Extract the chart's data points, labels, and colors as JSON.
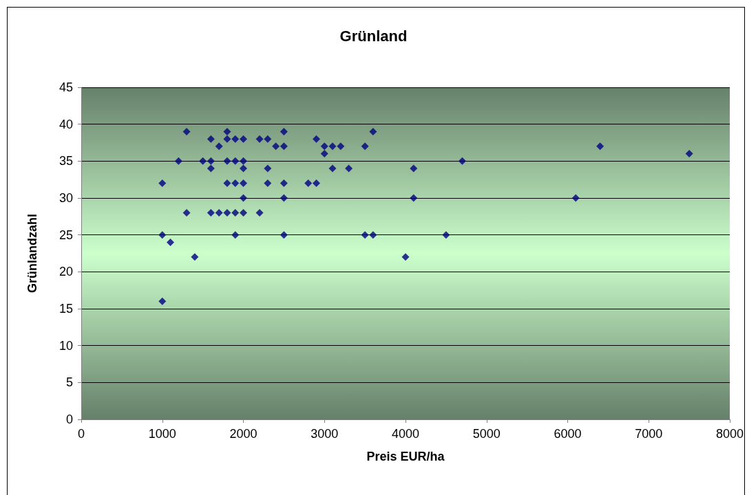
{
  "chart_data": {
    "type": "scatter",
    "title": "Grünland",
    "xlabel": "Preis EUR/ha",
    "ylabel": "Grünlandzahl",
    "x": [
      1000,
      1000,
      1000,
      1100,
      1200,
      1300,
      1300,
      1400,
      1500,
      1600,
      1600,
      1600,
      1600,
      1700,
      1700,
      1800,
      1800,
      1800,
      1800,
      1800,
      1900,
      1900,
      1900,
      1900,
      1900,
      2000,
      2000,
      2000,
      2000,
      2000,
      2000,
      2200,
      2200,
      2300,
      2300,
      2300,
      2400,
      2500,
      2500,
      2500,
      2500,
      2500,
      2800,
      2900,
      2900,
      3000,
      3000,
      3100,
      3100,
      3200,
      3300,
      3500,
      3500,
      3600,
      3600,
      4000,
      4100,
      4100,
      4500,
      4700,
      6100,
      6400,
      7500
    ],
    "series": [
      {
        "color": "#000080",
        "values": [
          32,
          25,
          16,
          24,
          35,
          39,
          28,
          22,
          35,
          38,
          35,
          34,
          28,
          37,
          28,
          39,
          38,
          35,
          32,
          28,
          38,
          35,
          32,
          28,
          25,
          38,
          35,
          34,
          32,
          30,
          28,
          38,
          28,
          38,
          34,
          32,
          37,
          39,
          37,
          32,
          30,
          25,
          32,
          38,
          32,
          37,
          36,
          37,
          34,
          37,
          34,
          37,
          25,
          39,
          25,
          22,
          34,
          30,
          25,
          35,
          30,
          37,
          36
        ]
      }
    ],
    "xlim": [
      0,
      8000
    ],
    "xticks": [
      0,
      1000,
      2000,
      3000,
      4000,
      5000,
      6000,
      7000,
      8000
    ],
    "ylim": [
      0,
      45
    ],
    "yticks": [
      0,
      5,
      10,
      15,
      20,
      25,
      30,
      35,
      40,
      45
    ],
    "grid": "y",
    "marker": "diamond"
  }
}
